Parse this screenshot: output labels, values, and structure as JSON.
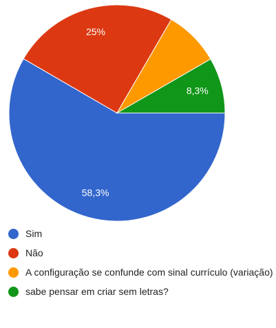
{
  "chart_data": {
    "type": "pie",
    "categories": [
      "Sim",
      "Não",
      "A configuração se confunde com sinal currículo (variação)",
      "sabe pensar em criar sem letras?"
    ],
    "values": [
      58.3,
      25,
      8.3,
      8.3
    ],
    "value_labels": [
      "58,3%",
      "25%",
      null,
      "8,3%"
    ],
    "colors": [
      "#3366cc",
      "#dc3912",
      "#ff9900",
      "#109618"
    ]
  }
}
